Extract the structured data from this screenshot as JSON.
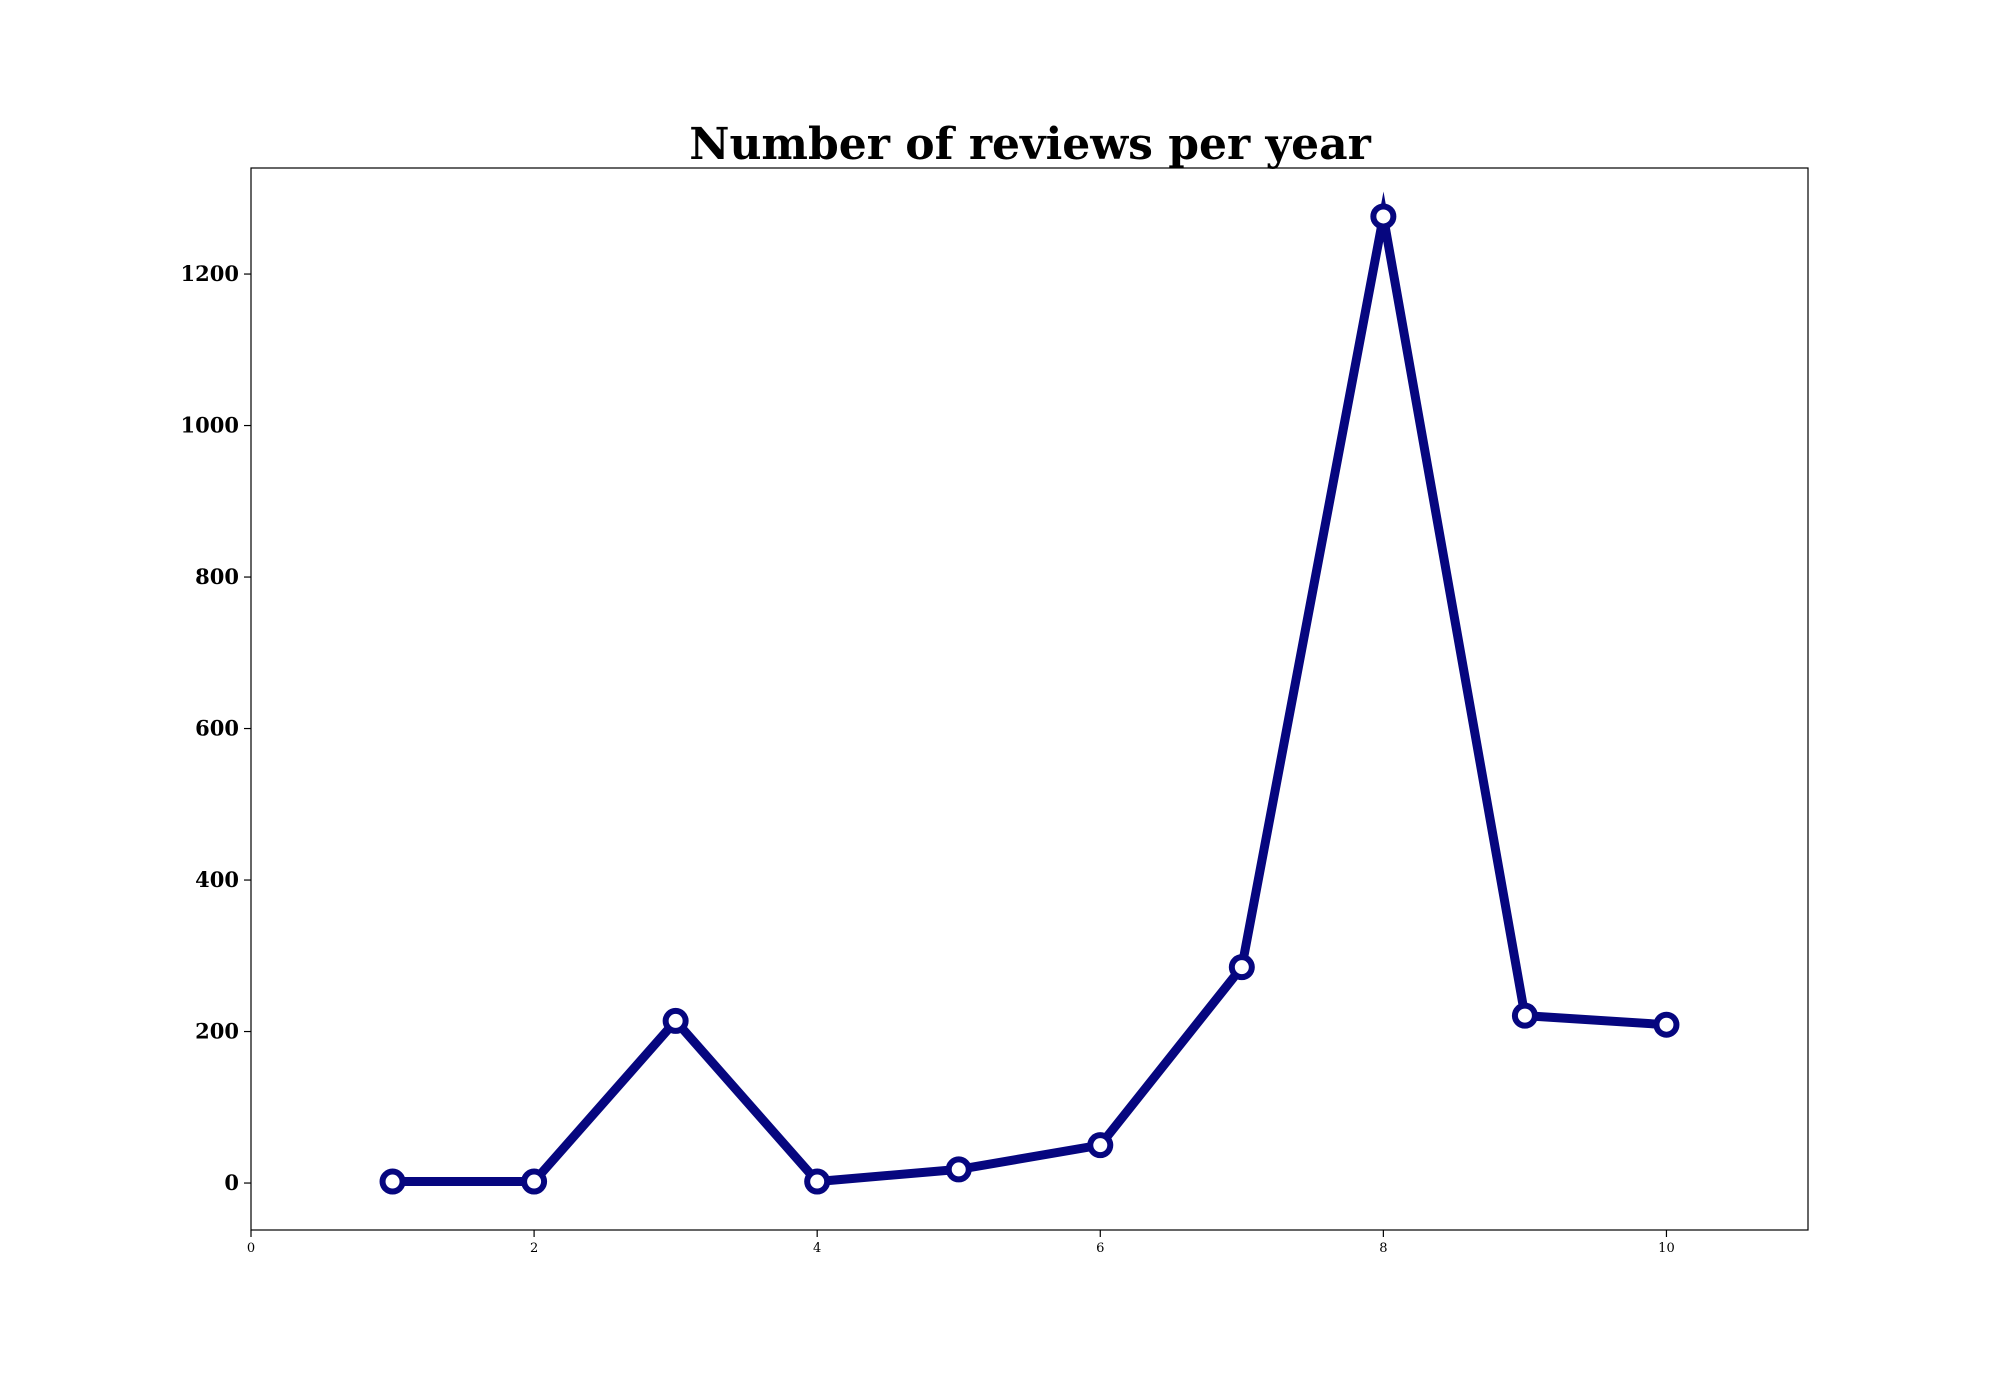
{
  "chart_data": {
    "type": "line",
    "title": "Number of reviews per year",
    "xlabel": "",
    "ylabel": "",
    "x": [
      1,
      2,
      3,
      4,
      5,
      6,
      7,
      8,
      9,
      10
    ],
    "series": [
      {
        "values": [
          2,
          2,
          214,
          2,
          18,
          50,
          285,
          1276,
          221,
          209
        ]
      }
    ],
    "xlim": [
      0,
      11
    ],
    "ylim": [
      -62,
      1340
    ],
    "xticks": [
      0,
      2,
      4,
      6,
      8,
      10
    ],
    "yticks": [
      0,
      200,
      400,
      600,
      800,
      1000,
      1200
    ],
    "grid": false,
    "legend": "none",
    "line_color": "#06067f",
    "marker": "hollow-circle",
    "marker_fill": "#ffffff"
  }
}
